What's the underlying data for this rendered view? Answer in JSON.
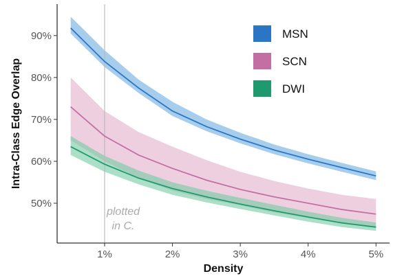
{
  "chart_data": {
    "type": "line",
    "xlabel": "Density",
    "ylabel": "Intra-Class Edge Overlap",
    "xlim": [
      0.3,
      5.2
    ],
    "ylim": [
      40.5,
      97.5
    ],
    "x_ticks": [
      1,
      2,
      3,
      4,
      5
    ],
    "x_tick_labels": [
      "1%",
      "2%",
      "3%",
      "4%",
      "5%"
    ],
    "y_ticks": [
      50,
      60,
      70,
      80,
      90
    ],
    "y_tick_labels": [
      "50%",
      "60%",
      "70%",
      "80%",
      "90%"
    ],
    "grid": false,
    "legend_position": "top-right",
    "reference_line": {
      "x": 1.0,
      "annotation": [
        "plotted",
        "in C."
      ]
    },
    "series": [
      {
        "name": "MSN",
        "color": "#2a76c4",
        "band_color": "#6aaee0",
        "x": [
          0.5,
          1.0,
          1.5,
          2.0,
          2.5,
          3.0,
          3.5,
          4.0,
          4.5,
          5.0
        ],
        "values": [
          91.8,
          83.8,
          77.5,
          72.0,
          68.3,
          65.3,
          62.7,
          60.5,
          58.5,
          56.5
        ],
        "lower": [
          90.5,
          82.5,
          76.3,
          70.8,
          67.2,
          64.3,
          61.7,
          59.5,
          57.5,
          55.5
        ],
        "upper": [
          94.5,
          86.5,
          79.5,
          74.2,
          70.0,
          66.8,
          64.0,
          61.7,
          59.6,
          57.6
        ]
      },
      {
        "name": "SCN",
        "color": "#c36fa3",
        "band_color": "#e3afcb",
        "x": [
          0.5,
          1.0,
          1.5,
          2.0,
          2.5,
          3.0,
          3.5,
          4.0,
          4.5,
          5.0
        ],
        "values": [
          73.0,
          66.0,
          61.5,
          58.3,
          55.5,
          53.3,
          51.5,
          50.0,
          48.5,
          47.4
        ],
        "lower": [
          65.0,
          60.0,
          56.0,
          53.0,
          51.0,
          49.5,
          47.8,
          46.5,
          45.3,
          44.3
        ],
        "upper": [
          80.0,
          72.0,
          67.0,
          63.5,
          60.3,
          57.5,
          55.3,
          53.5,
          52.0,
          51.0
        ]
      },
      {
        "name": "DWI",
        "color": "#1f9a6e",
        "band_color": "#73c9a1",
        "x": [
          0.5,
          1.0,
          1.5,
          2.0,
          2.5,
          3.0,
          3.5,
          4.0,
          4.5,
          5.0
        ],
        "values": [
          63.5,
          59.3,
          56.0,
          53.5,
          51.5,
          49.8,
          48.2,
          46.7,
          45.3,
          44.3
        ],
        "lower": [
          61.5,
          57.5,
          54.5,
          52.0,
          50.2,
          48.6,
          47.1,
          45.6,
          44.3,
          43.4
        ],
        "upper": [
          66.0,
          61.3,
          57.8,
          55.0,
          53.0,
          51.3,
          49.6,
          48.0,
          46.5,
          45.4
        ]
      }
    ]
  }
}
